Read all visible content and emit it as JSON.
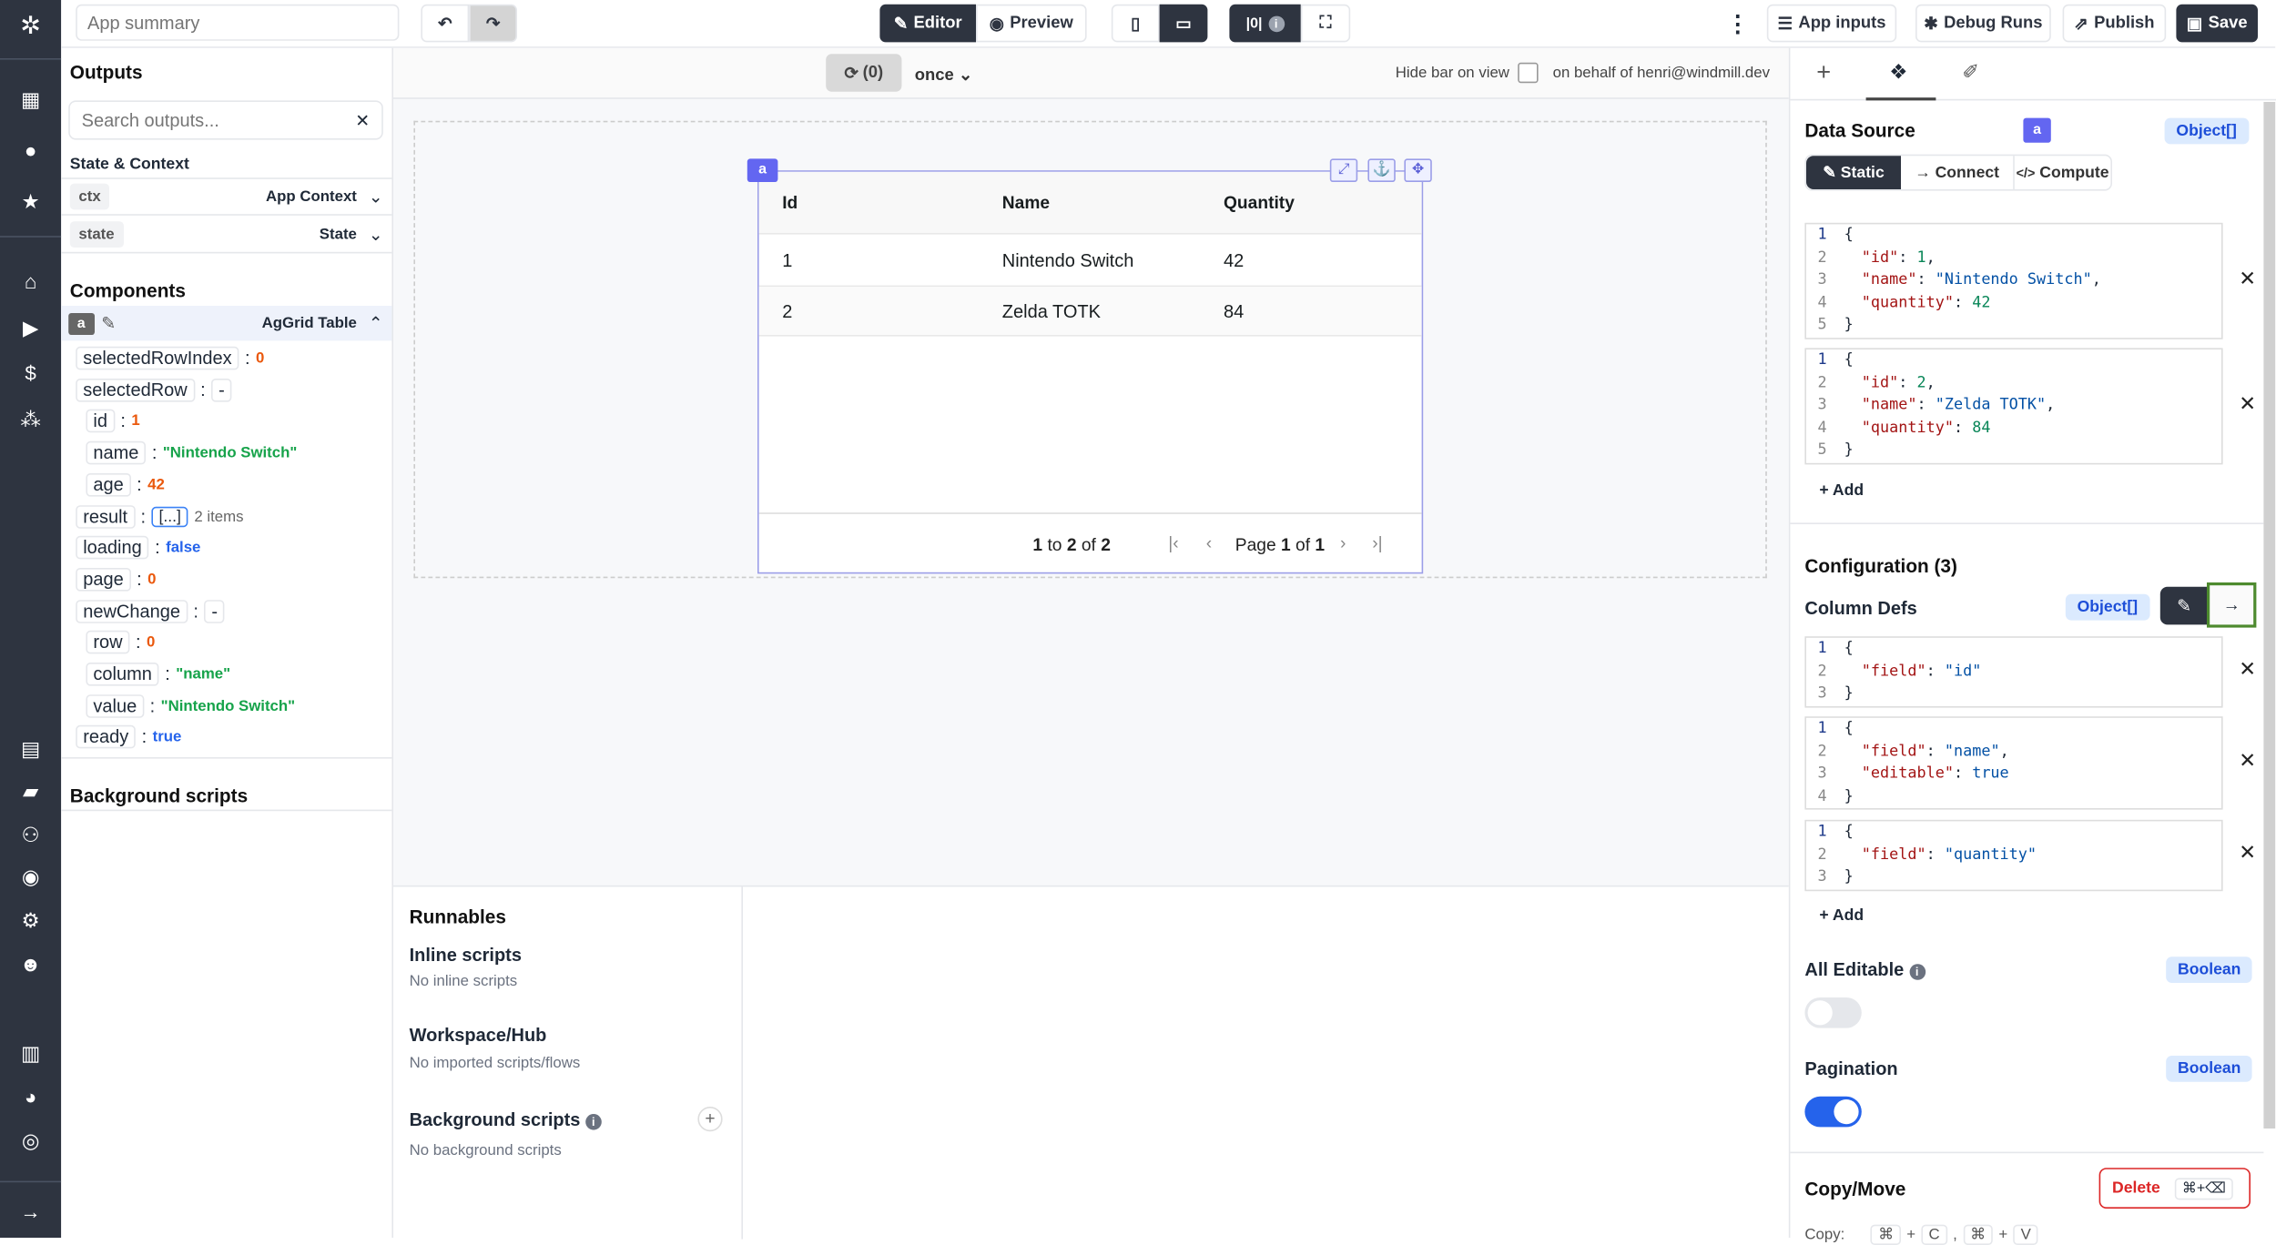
{
  "topbar": {
    "app_summary_placeholder": "App summary",
    "editor": "Editor",
    "preview": "Preview",
    "breakpoint_label": "|0|",
    "app_inputs": "App inputs",
    "debug_runs": "Debug Runs",
    "publish": "Publish",
    "save": "Save"
  },
  "nav": {
    "icons": [
      "windmill-logo",
      "building-icon",
      "user-icon",
      "star-icon",
      "home-icon",
      "play-icon",
      "dollar-icon",
      "cubes-icon",
      "calendar-icon",
      "folder-icon",
      "users-icon",
      "eye-icon",
      "gear-icon",
      "robot-icon",
      "book-icon",
      "discord-icon",
      "github-icon",
      "arrow-right-icon"
    ]
  },
  "outputs": {
    "title": "Outputs",
    "search_placeholder": "Search outputs...",
    "state_context_title": "State & Context",
    "ctx": {
      "key": "ctx",
      "label": "App Context"
    },
    "state": {
      "key": "state",
      "label": "State"
    },
    "components_title": "Components",
    "component": {
      "id": "a",
      "label": "AgGrid Table"
    },
    "tree": [
      {
        "key": "selectedRowIndex",
        "value": "0",
        "type": "num",
        "indent": 0
      },
      {
        "key": "selectedRow",
        "value": "-",
        "type": "obj",
        "indent": 0
      },
      {
        "key": "id",
        "value": "1",
        "type": "num",
        "indent": 1
      },
      {
        "key": "name",
        "value": "\"Nintendo Switch\"",
        "type": "str",
        "indent": 1
      },
      {
        "key": "age",
        "value": "42",
        "type": "num",
        "indent": 1
      },
      {
        "key": "result",
        "value": "[...]",
        "extra": "2 items",
        "type": "arr",
        "indent": 0
      },
      {
        "key": "loading",
        "value": "false",
        "type": "bool",
        "indent": 0
      },
      {
        "key": "page",
        "value": "0",
        "type": "num",
        "indent": 0
      },
      {
        "key": "newChange",
        "value": "-",
        "type": "obj",
        "indent": 0
      },
      {
        "key": "row",
        "value": "0",
        "type": "num",
        "indent": 1
      },
      {
        "key": "column",
        "value": "\"name\"",
        "type": "str",
        "indent": 1
      },
      {
        "key": "value",
        "value": "\"Nintendo Switch\"",
        "type": "str",
        "indent": 1
      },
      {
        "key": "ready",
        "value": "true",
        "type": "bool",
        "indent": 0
      }
    ],
    "background_scripts_title": "Background scripts"
  },
  "canvas": {
    "refresh_count": "(0)",
    "run_mode": "once",
    "hide_bar_label": "Hide bar on view",
    "hide_bar_checked": false,
    "on_behalf": "on behalf of henri@windmill.dev",
    "component_id": "a",
    "table": {
      "columns": [
        "Id",
        "Name",
        "Quantity"
      ],
      "rows": [
        [
          "1",
          "Nintendo Switch",
          "42"
        ],
        [
          "2",
          "Zelda TOTK",
          "84"
        ]
      ],
      "summary": {
        "from": "1",
        "to_word": "to",
        "to": "2",
        "of_word": "of",
        "total": "2"
      },
      "page": {
        "label": "Page",
        "current": "1",
        "of_word": "of",
        "total": "1"
      }
    }
  },
  "runnables": {
    "title": "Runnables",
    "inline_title": "Inline scripts",
    "inline_empty": "No inline scripts",
    "hub_title": "Workspace/Hub",
    "hub_empty": "No imported scripts/flows",
    "bg_title": "Background scripts",
    "bg_empty": "No background scripts"
  },
  "panel": {
    "data_source_title": "Data Source",
    "component_id": "a",
    "data_type": "Object[]",
    "modes": [
      "Static",
      "Connect",
      "Compute"
    ],
    "active_mode": "Static",
    "data_items": [
      [
        [
          "{"
        ],
        [
          "\"id\"",
          ": ",
          "1",
          ","
        ],
        [
          "\"name\"",
          ": ",
          "\"Nintendo Switch\"",
          ","
        ],
        [
          "\"quantity\"",
          ": ",
          "42",
          ""
        ],
        [
          "}"
        ]
      ],
      [
        [
          "{"
        ],
        [
          "\"id\"",
          ": ",
          "2",
          ","
        ],
        [
          "\"name\"",
          ": ",
          "\"Zelda TOTK\"",
          ","
        ],
        [
          "\"quantity\"",
          ": ",
          "84",
          ""
        ],
        [
          "}"
        ]
      ]
    ],
    "add_label": "+ Add",
    "config_title": "Configuration (3)",
    "column_defs_title": "Column Defs",
    "column_defs_type": "Object[]",
    "column_defs": [
      [
        [
          "{"
        ],
        [
          "\"field\"",
          ": ",
          "\"id\"",
          ""
        ],
        [
          "}"
        ]
      ],
      [
        [
          "{"
        ],
        [
          "\"field\"",
          ": ",
          "\"name\"",
          ","
        ],
        [
          "\"editable\"",
          ": ",
          "true",
          ""
        ],
        [
          "}"
        ]
      ],
      [
        [
          "{"
        ],
        [
          "\"field\"",
          ": ",
          "\"quantity\"",
          ""
        ],
        [
          "}"
        ]
      ]
    ],
    "all_editable_title": "All Editable",
    "all_editable_type": "Boolean",
    "all_editable": false,
    "pagination_title": "Pagination",
    "pagination_type": "Boolean",
    "pagination": true,
    "copy_move_title": "Copy/Move",
    "delete_label": "Delete",
    "delete_shortcut": "⌘+⌫",
    "copy_label": "Copy:",
    "copy_shortcut": [
      "⌘",
      "+",
      "C",
      ",",
      "⌘",
      "+",
      "V"
    ],
    "colors": {
      "accent": "#6366f1",
      "dark": "#2e3440",
      "toggle_on": "#2563eb",
      "toggle_off": "#e5e7eb",
      "delete": "#dc2626"
    }
  }
}
